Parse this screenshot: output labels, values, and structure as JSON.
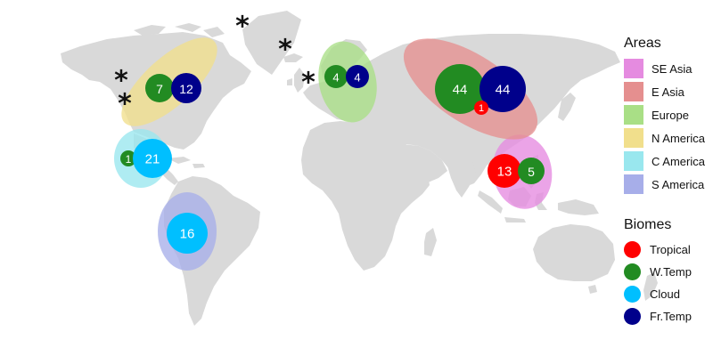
{
  "map": {
    "land_color": "#d9d9d9",
    "areas": [
      {
        "key": "se_asia",
        "label": "SE Asia",
        "color": "#e58be0"
      },
      {
        "key": "e_asia",
        "label": "E Asia",
        "color": "#e58f8f"
      },
      {
        "key": "europe",
        "label": "Europe",
        "color": "#a9df86"
      },
      {
        "key": "n_america",
        "label": "N America",
        "color": "#f1df8c"
      },
      {
        "key": "c_america",
        "label": "C America",
        "color": "#99e7ee"
      },
      {
        "key": "s_america",
        "label": "S America",
        "color": "#a7aee9"
      }
    ],
    "biomes": [
      {
        "key": "tropical",
        "label": "Tropical",
        "color": "#ff0000"
      },
      {
        "key": "wtemp",
        "label": "W.Temp",
        "color": "#228b22"
      },
      {
        "key": "cloud",
        "label": "Cloud",
        "color": "#00bfff"
      },
      {
        "key": "frtemp",
        "label": "Fr.Temp",
        "color": "#00008b"
      }
    ],
    "counts": [
      {
        "area": "n_america",
        "biome": "wtemp",
        "value": "7"
      },
      {
        "area": "n_america",
        "biome": "frtemp",
        "value": "12"
      },
      {
        "area": "europe",
        "biome": "wtemp",
        "value": "4"
      },
      {
        "area": "europe",
        "biome": "frtemp",
        "value": "4"
      },
      {
        "area": "e_asia",
        "biome": "wtemp",
        "value": "44"
      },
      {
        "area": "e_asia",
        "biome": "frtemp",
        "value": "44"
      },
      {
        "area": "e_asia",
        "biome": "tropical",
        "value": "1"
      },
      {
        "area": "c_america",
        "biome": "wtemp",
        "value": "1"
      },
      {
        "area": "c_america",
        "biome": "cloud",
        "value": "21"
      },
      {
        "area": "se_asia",
        "biome": "tropical",
        "value": "13"
      },
      {
        "area": "se_asia",
        "biome": "wtemp",
        "value": "5"
      },
      {
        "area": "s_america",
        "biome": "cloud",
        "value": "16"
      }
    ],
    "star_symbol": "*"
  },
  "legend": {
    "areas_title": "Areas",
    "biomes_title": "Biomes"
  }
}
